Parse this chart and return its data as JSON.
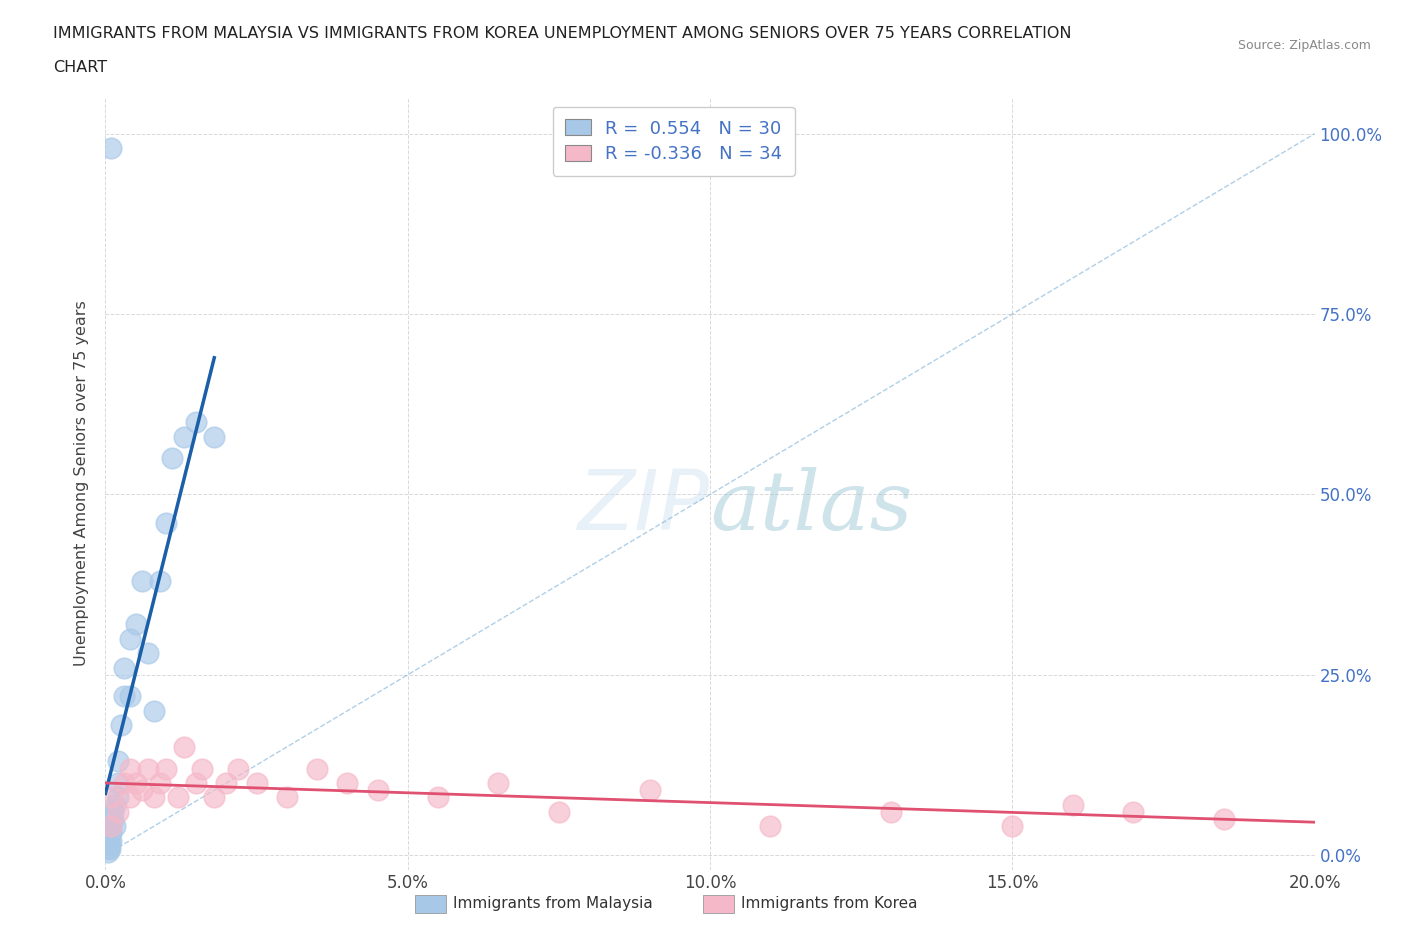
{
  "title_line1": "IMMIGRANTS FROM MALAYSIA VS IMMIGRANTS FROM KOREA UNEMPLOYMENT AMONG SENIORS OVER 75 YEARS CORRELATION",
  "title_line2": "CHART",
  "source": "Source: ZipAtlas.com",
  "ylabel": "Unemployment Among Seniors over 75 years",
  "r_malaysia": 0.554,
  "n_malaysia": 30,
  "r_korea": -0.336,
  "n_korea": 34,
  "legend_labels": [
    "Immigrants from Malaysia",
    "Immigrants from Korea"
  ],
  "malaysia_color": "#a8c8e8",
  "korea_color": "#f5b8c8",
  "malaysia_line_color": "#1a5fa8",
  "korea_line_color": "#e05070",
  "malaysia_dash_color": "#7ab0d8",
  "watermark_text": "ZIPatlas",
  "xlim": [
    0.0,
    0.2
  ],
  "ylim": [
    -0.02,
    1.05
  ],
  "xticks": [
    0.0,
    0.05,
    0.1,
    0.15,
    0.2
  ],
  "yticks": [
    0.0,
    0.25,
    0.5,
    0.75,
    1.0
  ],
  "malaysia_x": [
    0.0005,
    0.0006,
    0.0007,
    0.0008,
    0.001,
    0.001,
    0.001,
    0.0012,
    0.0013,
    0.0015,
    0.0015,
    0.002,
    0.002,
    0.002,
    0.0025,
    0.003,
    0.003,
    0.004,
    0.004,
    0.005,
    0.006,
    0.007,
    0.008,
    0.009,
    0.01,
    0.011,
    0.013,
    0.015,
    0.018,
    0.001
  ],
  "malaysia_y": [
    0.005,
    0.01,
    0.008,
    0.015,
    0.02,
    0.03,
    0.04,
    0.06,
    0.05,
    0.07,
    0.04,
    0.08,
    0.1,
    0.13,
    0.18,
    0.22,
    0.26,
    0.3,
    0.22,
    0.32,
    0.38,
    0.28,
    0.2,
    0.38,
    0.46,
    0.55,
    0.58,
    0.6,
    0.58,
    0.98
  ],
  "korea_x": [
    0.001,
    0.001,
    0.002,
    0.003,
    0.004,
    0.004,
    0.005,
    0.006,
    0.007,
    0.008,
    0.009,
    0.01,
    0.012,
    0.013,
    0.015,
    0.016,
    0.018,
    0.02,
    0.022,
    0.025,
    0.03,
    0.035,
    0.04,
    0.045,
    0.055,
    0.065,
    0.075,
    0.09,
    0.11,
    0.13,
    0.15,
    0.16,
    0.17,
    0.185
  ],
  "korea_y": [
    0.04,
    0.08,
    0.06,
    0.1,
    0.08,
    0.12,
    0.1,
    0.09,
    0.12,
    0.08,
    0.1,
    0.12,
    0.08,
    0.15,
    0.1,
    0.12,
    0.08,
    0.1,
    0.12,
    0.1,
    0.08,
    0.12,
    0.1,
    0.09,
    0.08,
    0.1,
    0.06,
    0.09,
    0.04,
    0.06,
    0.04,
    0.07,
    0.06,
    0.05
  ],
  "background_color": "#ffffff",
  "grid_color": "#d0d0d0"
}
